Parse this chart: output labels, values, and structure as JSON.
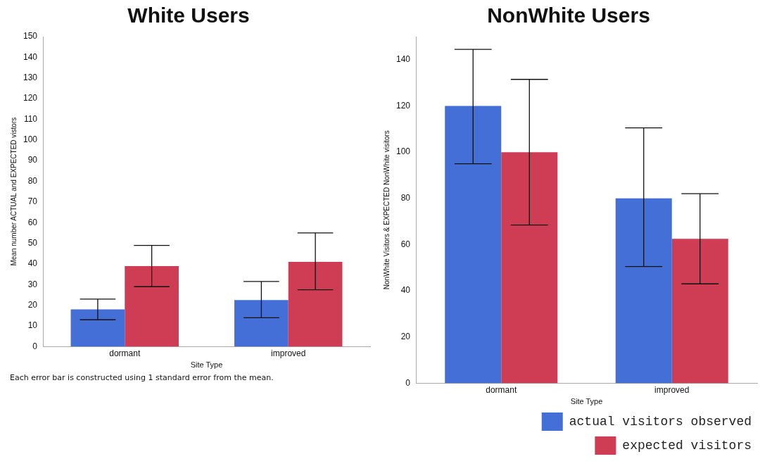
{
  "chart_data": [
    {
      "type": "bar",
      "title": "White Users",
      "xlabel": "Site Type",
      "ylabel": "Mean number ACTUAL and EXPECTED vistors",
      "categories": [
        "dormant",
        "improved"
      ],
      "series": [
        {
          "color": "#436fd6",
          "values": [
            18,
            22.5
          ],
          "errors": [
            [
              13,
              23
            ],
            [
              14,
              31.5
            ]
          ]
        },
        {
          "color": "#cf3d55",
          "values": [
            39,
            41
          ],
          "errors": [
            [
              29,
              49
            ],
            [
              27.5,
              55
            ]
          ]
        }
      ],
      "ylim": [
        0,
        150
      ],
      "yticks": [
        0,
        10,
        20,
        30,
        40,
        50,
        60,
        70,
        80,
        90,
        100,
        110,
        120,
        130,
        140,
        150
      ],
      "grid": false,
      "legend": false,
      "annotations": [
        "Each error bar is constructed using 1 standard error from the mean."
      ]
    },
    {
      "type": "bar",
      "title": "NonWhite Users",
      "xlabel": "Site Type",
      "ylabel": "NonWhite Visitors & EXPECTED NonWhite visitors",
      "categories": [
        "dormant",
        "improved"
      ],
      "series": [
        {
          "name": "actual visitors observed",
          "color": "#436fd6",
          "values": [
            120,
            80
          ],
          "errors": [
            [
              95,
              144.5
            ],
            [
              50.5,
              110.5
            ]
          ]
        },
        {
          "name": "expected visitors",
          "color": "#cf3d55",
          "values": [
            100,
            62.5
          ],
          "errors": [
            [
              68.5,
              131.5
            ],
            [
              43,
              82
            ]
          ]
        }
      ],
      "ylim": [
        0,
        150
      ],
      "yticks": [
        0,
        20,
        40,
        60,
        80,
        100,
        120,
        140
      ],
      "grid": false,
      "legend": "bottom right"
    }
  ]
}
